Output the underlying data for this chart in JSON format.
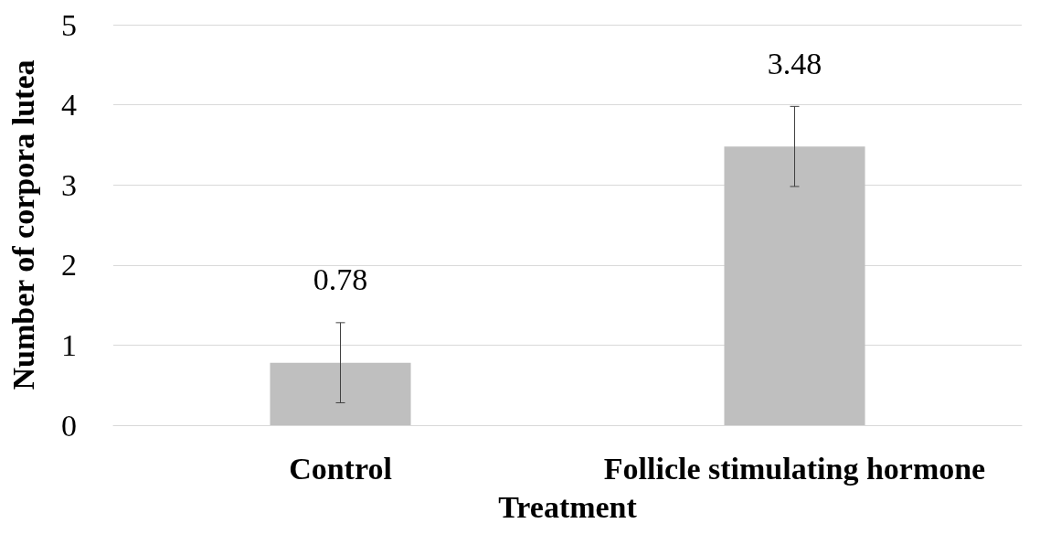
{
  "chart_data": {
    "type": "bar",
    "xlabel": "Treatment",
    "ylabel": "Number of corpora lutea",
    "categories": [
      "Control",
      "Follicle stimulating hormone"
    ],
    "values": [
      0.78,
      3.48
    ],
    "color": "#bfbfbf",
    "errors": [
      0.5,
      0.5
    ],
    "data_labels": true,
    "ylim": [
      0,
      5
    ],
    "yticks": [
      0,
      1,
      2,
      3,
      4,
      5
    ],
    "grid": "y"
  }
}
